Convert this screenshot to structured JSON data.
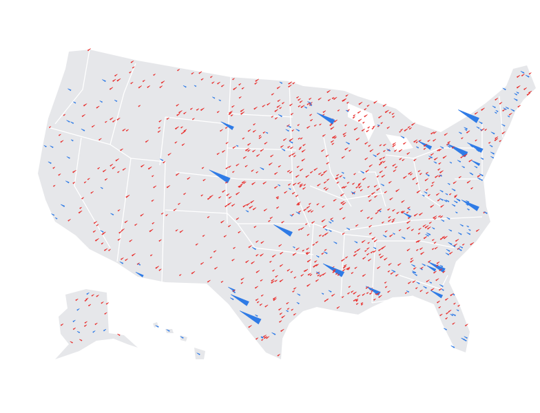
{
  "map": {
    "land_color": "#e6e7ea",
    "border_color": "#ffffff",
    "arrow_colors": {
      "red_shift": "#e8312f",
      "blue_shift": "#2f7be6"
    },
    "regions": [
      "contiguous-us",
      "alaska",
      "hawaii"
    ]
  }
}
